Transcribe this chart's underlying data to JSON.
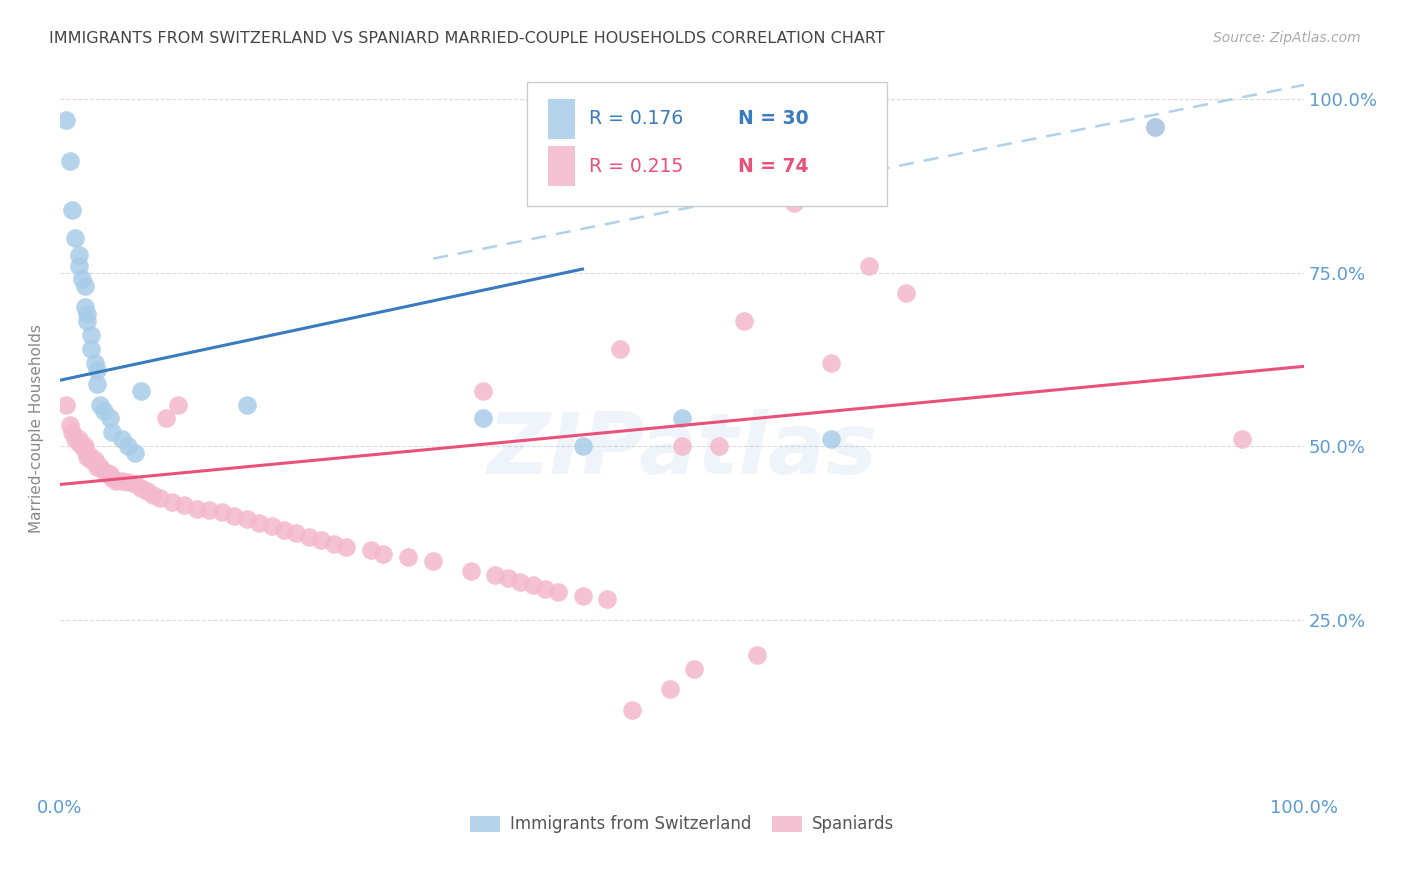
{
  "title": "IMMIGRANTS FROM SWITZERLAND VS SPANIARD MARRIED-COUPLE HOUSEHOLDS CORRELATION CHART",
  "source": "Source: ZipAtlas.com",
  "ylabel": "Married-couple Households",
  "legend_blue_r": "R = 0.176",
  "legend_blue_n": "N = 30",
  "legend_pink_r": "R = 0.215",
  "legend_pink_n": "N = 74",
  "watermark": "ZIPatlas",
  "blue_color": "#a8cce8",
  "pink_color": "#f4b8cc",
  "blue_line_color": "#3a7abf",
  "pink_line_color": "#e8517a",
  "right_axis_color": "#5b9bd5",
  "grid_color": "#cccccc",
  "background_color": "#ffffff",
  "blue_x": [
    0.005,
    0.008,
    0.01,
    0.012,
    0.015,
    0.015,
    0.018,
    0.02,
    0.02,
    0.022,
    0.022,
    0.025,
    0.025,
    0.028,
    0.03,
    0.03,
    0.032,
    0.035,
    0.04,
    0.042,
    0.05,
    0.055,
    0.06,
    0.065,
    0.15,
    0.34,
    0.42,
    0.5,
    0.62,
    0.88
  ],
  "blue_y": [
    0.97,
    0.91,
    0.84,
    0.8,
    0.775,
    0.76,
    0.74,
    0.73,
    0.7,
    0.69,
    0.68,
    0.66,
    0.64,
    0.62,
    0.61,
    0.59,
    0.56,
    0.55,
    0.54,
    0.52,
    0.51,
    0.5,
    0.49,
    0.58,
    0.56,
    0.54,
    0.5,
    0.54,
    0.51,
    0.96
  ],
  "pink_x": [
    0.005,
    0.008,
    0.01,
    0.012,
    0.015,
    0.015,
    0.018,
    0.02,
    0.02,
    0.022,
    0.022,
    0.025,
    0.025,
    0.028,
    0.03,
    0.03,
    0.032,
    0.035,
    0.038,
    0.04,
    0.042,
    0.045,
    0.05,
    0.055,
    0.06,
    0.065,
    0.07,
    0.075,
    0.08,
    0.085,
    0.09,
    0.095,
    0.1,
    0.11,
    0.12,
    0.13,
    0.14,
    0.15,
    0.16,
    0.17,
    0.18,
    0.19,
    0.2,
    0.21,
    0.22,
    0.23,
    0.25,
    0.26,
    0.28,
    0.3,
    0.33,
    0.34,
    0.35,
    0.36,
    0.37,
    0.38,
    0.39,
    0.4,
    0.42,
    0.44,
    0.45,
    0.46,
    0.49,
    0.5,
    0.51,
    0.53,
    0.55,
    0.56,
    0.59,
    0.62,
    0.65,
    0.68,
    0.88,
    0.95
  ],
  "pink_y": [
    0.56,
    0.53,
    0.52,
    0.51,
    0.51,
    0.505,
    0.5,
    0.5,
    0.495,
    0.49,
    0.485,
    0.485,
    0.48,
    0.48,
    0.475,
    0.47,
    0.47,
    0.465,
    0.46,
    0.46,
    0.455,
    0.45,
    0.45,
    0.448,
    0.445,
    0.44,
    0.435,
    0.43,
    0.425,
    0.54,
    0.42,
    0.56,
    0.415,
    0.41,
    0.408,
    0.405,
    0.4,
    0.395,
    0.39,
    0.385,
    0.38,
    0.375,
    0.37,
    0.365,
    0.36,
    0.355,
    0.35,
    0.345,
    0.34,
    0.335,
    0.32,
    0.58,
    0.315,
    0.31,
    0.305,
    0.3,
    0.295,
    0.29,
    0.285,
    0.28,
    0.64,
    0.12,
    0.15,
    0.5,
    0.18,
    0.5,
    0.68,
    0.2,
    0.85,
    0.62,
    0.76,
    0.72,
    0.96,
    0.51
  ],
  "xlim": [
    0.0,
    1.0
  ],
  "ylim": [
    0.0,
    1.05
  ],
  "ytick_positions": [
    0.25,
    0.5,
    0.75,
    1.0
  ],
  "ytick_labels": [
    "25.0%",
    "50.0%",
    "75.0%",
    "100.0%"
  ],
  "xtick_positions": [
    0.0,
    1.0
  ],
  "xtick_labels": [
    "0.0%",
    "100.0%"
  ],
  "blue_line_x0": 0.0,
  "blue_line_y0": 0.595,
  "blue_line_x1": 0.42,
  "blue_line_y1": 0.755,
  "pink_line_x0": 0.0,
  "pink_line_y0": 0.445,
  "pink_line_x1": 1.0,
  "pink_line_y1": 0.615,
  "dash_line_x0": 0.3,
  "dash_line_y0": 0.77,
  "dash_line_x1": 1.0,
  "dash_line_y1": 1.02
}
